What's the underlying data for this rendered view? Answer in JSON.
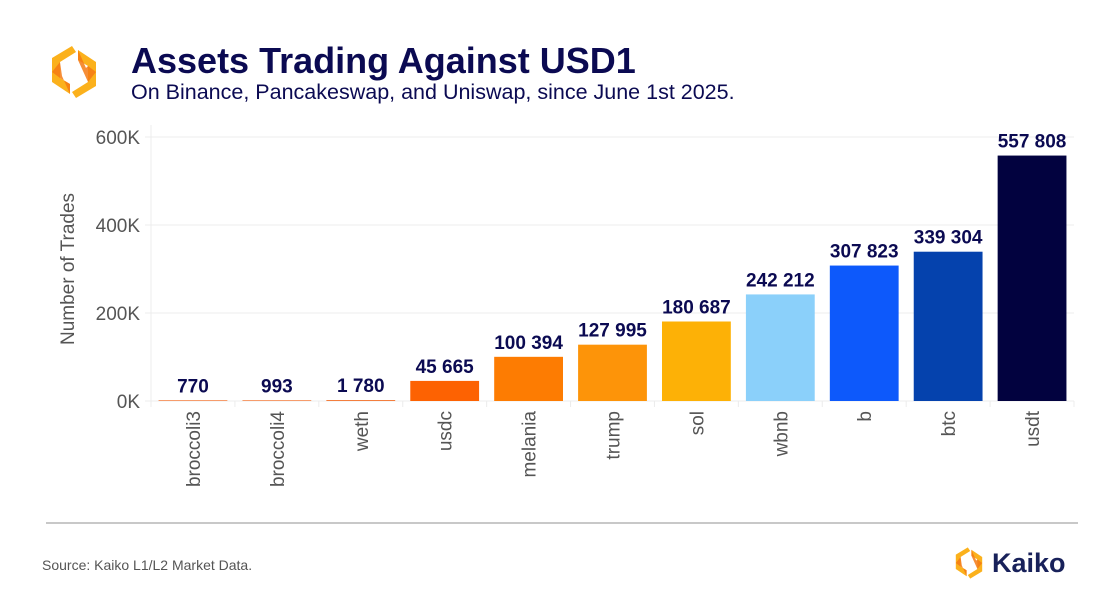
{
  "header": {
    "title": "Assets Trading Against USD1",
    "subtitle": "On Binance, Pancakeswap, and Uniswap, since June 1st 2025.",
    "logo_icon": "kaiko-hexagon-logo-icon"
  },
  "footer": {
    "source": "Source: Kaiko L1/L2 Market Data.",
    "brand_name": "Kaiko",
    "brand_icon": "kaiko-hexagon-logo-icon"
  },
  "colors": {
    "title": "#0b0a52",
    "logo_orange": "#f57a14",
    "logo_yellow": "#fbb11c",
    "gridline": "#ececec",
    "axis_text": "#555555"
  },
  "chart_data": {
    "type": "bar",
    "title": "Assets Trading Against USD1",
    "subtitle": "On Binance, Pancakeswap, and Uniswap, since June 1st 2025.",
    "xlabel": "",
    "ylabel": "Number of Trades",
    "ylim": [
      0,
      600000
    ],
    "yticks": [
      0,
      200000,
      400000,
      600000
    ],
    "ytick_labels": [
      "0K",
      "200K",
      "400K",
      "600K"
    ],
    "grid": true,
    "legend": "none",
    "categories": [
      "broccoli3",
      "broccoli4",
      "weth",
      "usdc",
      "melania",
      "trump",
      "sol",
      "wbnb",
      "b",
      "btc",
      "usdt"
    ],
    "values": [
      770,
      993,
      1780,
      45665,
      100394,
      127995,
      180687,
      242212,
      307823,
      339304,
      557808
    ],
    "data_labels": [
      "770",
      "993",
      "1 780",
      "45 665",
      "100 394",
      "127 995",
      "180 687",
      "242 212",
      "307 823",
      "339 304",
      "557 808"
    ],
    "bar_colors": [
      "#f05a0a",
      "#f05a0a",
      "#f05a0a",
      "#fd6202",
      "#fd7c02",
      "#fd9409",
      "#fdb106",
      "#8bd0fa",
      "#0d59fb",
      "#0542ad",
      "#02023f"
    ]
  }
}
